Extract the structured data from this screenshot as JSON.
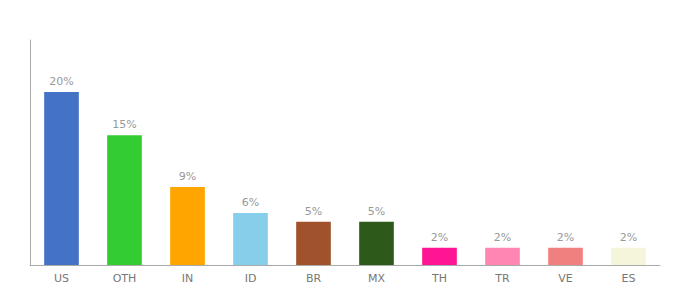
{
  "chart_data": {
    "type": "bar",
    "categories": [
      "US",
      "OTH",
      "IN",
      "ID",
      "BR",
      "MX",
      "TH",
      "TR",
      "VE",
      "ES"
    ],
    "values": [
      20,
      15,
      9,
      6,
      5,
      5,
      2,
      2,
      2,
      2
    ],
    "value_labels": [
      "20%",
      "15%",
      "9%",
      "6%",
      "5%",
      "5%",
      "2%",
      "2%",
      "2%",
      "2%"
    ],
    "colors": [
      "#4472C4",
      "#33CC33",
      "#FFA500",
      "#87CEEB",
      "#A0522D",
      "#2D5A1B",
      "#FF1493",
      "#FF85B3",
      "#F08080",
      "#F5F5DC"
    ],
    "ylim": [
      0,
      26
    ],
    "grid": false,
    "data_labels": true,
    "tick_labels": "x"
  }
}
